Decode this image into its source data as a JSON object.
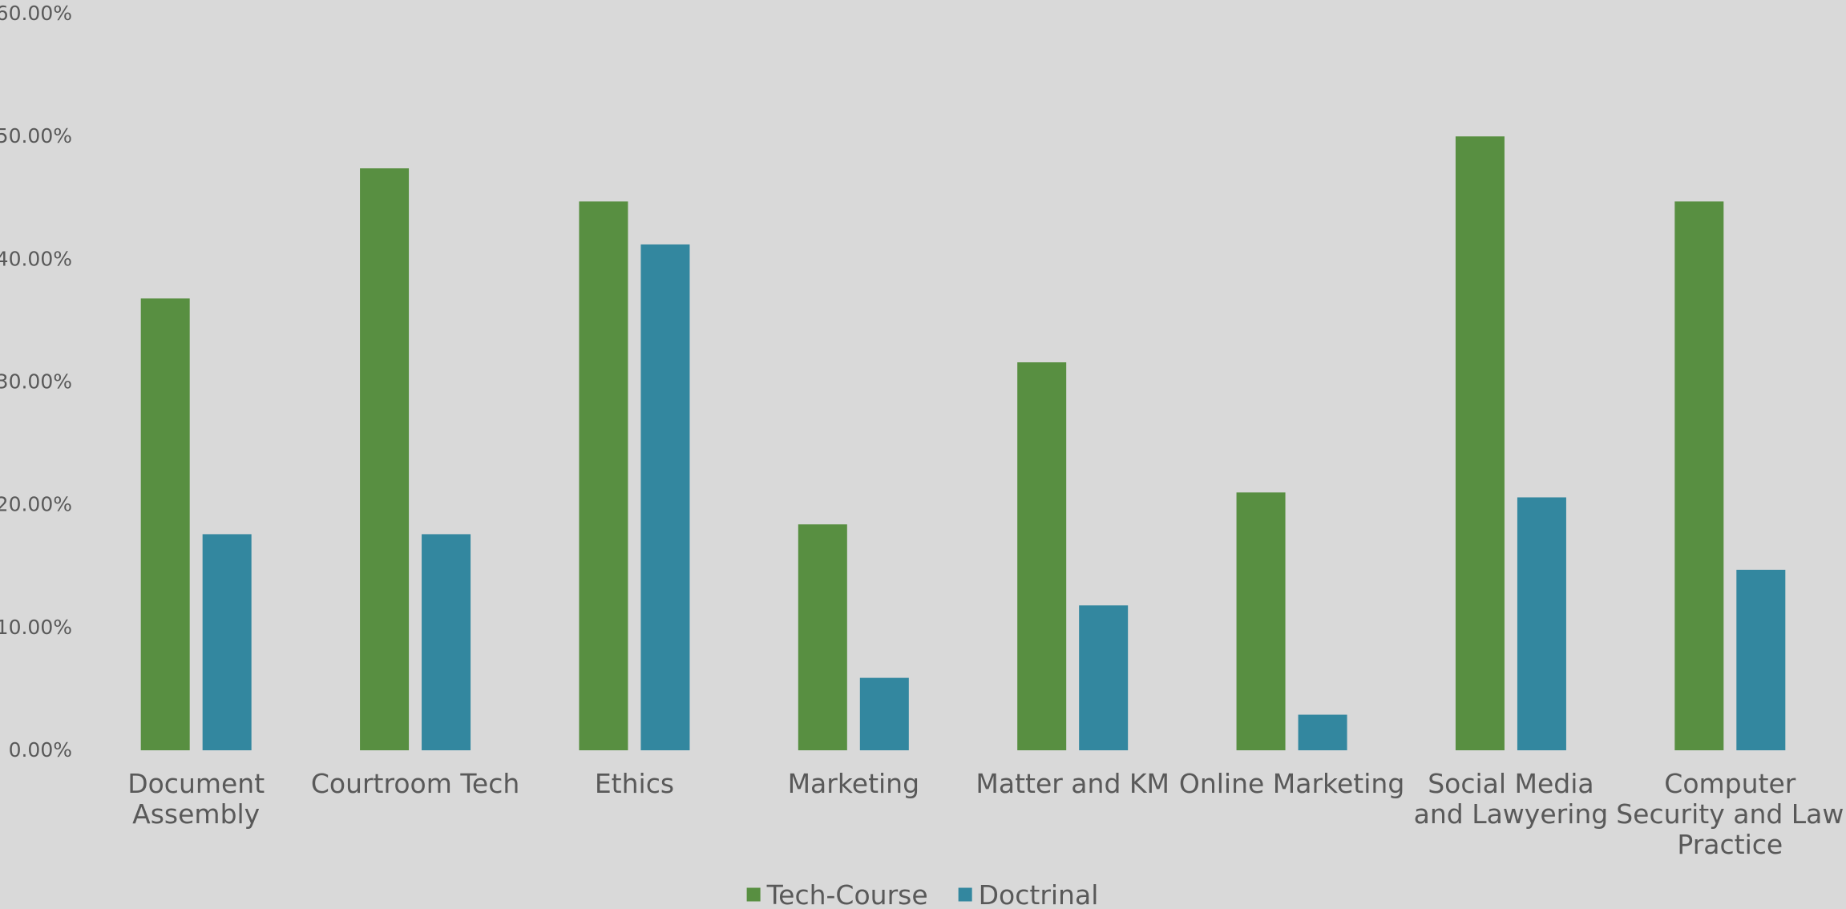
{
  "chart_data": {
    "type": "bar",
    "title": "",
    "xlabel": "",
    "ylabel": "",
    "ylim": [
      0,
      0.6
    ],
    "ytick_step": 0.1,
    "ytick_labels": [
      "0.00%",
      "10.00%",
      "20.00%",
      "30.00%",
      "40.00%",
      "50.00%",
      "60.00%"
    ],
    "grid": false,
    "legend_position": "bottom",
    "categories": [
      [
        "Document",
        "Assembly"
      ],
      [
        "Courtroom Tech"
      ],
      [
        "Ethics"
      ],
      [
        "Marketing"
      ],
      [
        "Matter and KM"
      ],
      [
        "Online Marketing"
      ],
      [
        "Social Media",
        "and Lawyering"
      ],
      [
        "Computer",
        "Security and Law",
        "Practice"
      ]
    ],
    "series": [
      {
        "name": "Tech-Course",
        "color": "#588f41",
        "values": [
          0.368,
          0.474,
          0.447,
          0.184,
          0.316,
          0.21,
          0.5,
          0.447
        ]
      },
      {
        "name": "Doctrinal",
        "color": "#33879f",
        "values": [
          0.176,
          0.176,
          0.412,
          0.059,
          0.118,
          0.029,
          0.206,
          0.147
        ]
      }
    ]
  }
}
